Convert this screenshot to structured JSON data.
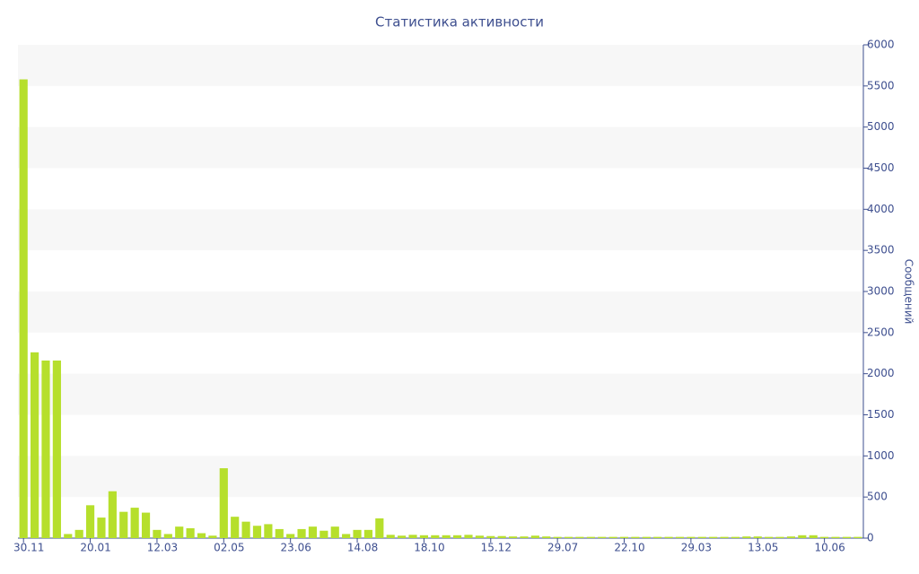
{
  "chart_data": {
    "type": "bar",
    "title": "Статистика активности",
    "y_axis_label": "Сообщений",
    "categories": [
      "30.11",
      null,
      null,
      null,
      null,
      null,
      "20.01",
      null,
      null,
      null,
      null,
      null,
      "12.03",
      null,
      null,
      null,
      null,
      null,
      "02.05",
      null,
      null,
      null,
      null,
      null,
      "23.06",
      null,
      null,
      null,
      null,
      null,
      "14.08",
      null,
      null,
      null,
      null,
      null,
      "18.10",
      null,
      null,
      null,
      null,
      null,
      "15.12",
      null,
      null,
      null,
      null,
      null,
      "29.07",
      null,
      null,
      null,
      null,
      null,
      "22.10",
      null,
      null,
      null,
      null,
      null,
      "29.03",
      null,
      null,
      null,
      null,
      null,
      "13.05",
      null,
      null,
      null,
      null,
      null,
      "10.06",
      null,
      null,
      null
    ],
    "values": [
      5580,
      2260,
      2160,
      2160,
      50,
      100,
      400,
      250,
      570,
      320,
      370,
      310,
      100,
      50,
      140,
      120,
      60,
      30,
      850,
      260,
      200,
      150,
      170,
      110,
      50,
      110,
      140,
      90,
      140,
      50,
      100,
      100,
      240,
      40,
      30,
      40,
      35,
      35,
      35,
      35,
      40,
      30,
      25,
      25,
      20,
      20,
      30,
      20,
      15,
      15,
      15,
      15,
      15,
      15,
      15,
      15,
      15,
      15,
      15,
      15,
      15,
      15,
      15,
      15,
      15,
      20,
      20,
      15,
      15,
      20,
      35,
      35,
      15,
      15,
      15,
      15
    ],
    "color": "#b6df2c",
    "ylim": [
      0,
      6000
    ],
    "yticks": [
      0,
      500,
      1000,
      1500,
      2000,
      2500,
      3000,
      3500,
      4000,
      4500,
      5000,
      5500,
      6000
    ],
    "grid": true,
    "y_axis_side": "right"
  }
}
